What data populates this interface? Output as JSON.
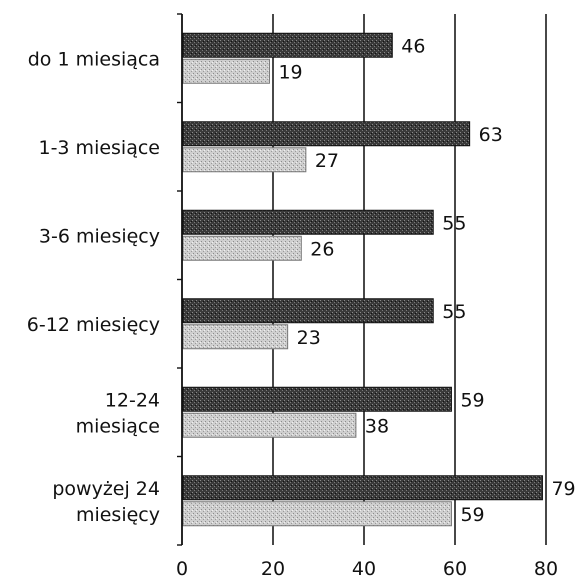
{
  "chart_data": {
    "type": "bar",
    "orientation": "horizontal",
    "categories": [
      [
        "do 1 miesiąca"
      ],
      [
        "1-3 miesiące"
      ],
      [
        "3-6 miesięcy"
      ],
      [
        "6-12 miesięcy"
      ],
      [
        "12-24",
        "miesiące"
      ],
      [
        "powyżej 24",
        "miesięcy"
      ]
    ],
    "series": [
      {
        "values": [
          46,
          63,
          55,
          55,
          59,
          79
        ],
        "color": "#2e2e2e",
        "pattern": "dark-stipple"
      },
      {
        "values": [
          19,
          27,
          26,
          23,
          38,
          59
        ],
        "color": "#c4c4c4",
        "pattern": "light-stipple"
      }
    ],
    "xlim": [
      0,
      80
    ],
    "x_ticks": [
      0,
      20,
      40,
      60,
      80
    ],
    "grid": true,
    "legend": "none",
    "title": "",
    "xlabel": "",
    "ylabel": ""
  }
}
